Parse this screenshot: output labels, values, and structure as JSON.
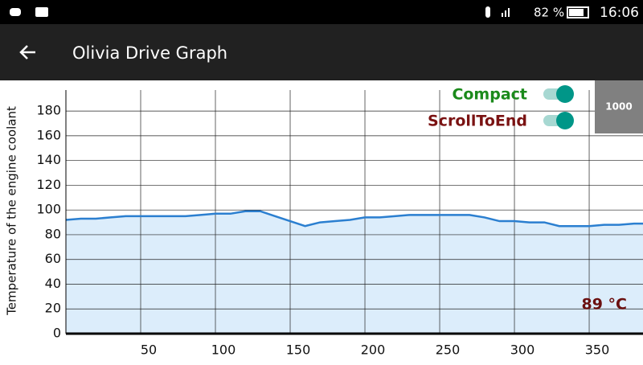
{
  "status_bar": {
    "battery": "82 %",
    "time": "16:06"
  },
  "app_bar": {
    "title": "Olivia Drive Graph"
  },
  "controls": {
    "toggles": [
      "Compact",
      "ScrollToEnd"
    ],
    "button": "1000"
  },
  "chart_data": {
    "type": "line",
    "y_label": "Temperature of the engine coolant",
    "annotation": "89 °C",
    "x": [
      0,
      10,
      20,
      30,
      40,
      50,
      60,
      70,
      80,
      90,
      100,
      110,
      120,
      130,
      140,
      150,
      160,
      170,
      180,
      190,
      200,
      210,
      220,
      230,
      240,
      250,
      260,
      270,
      280,
      290,
      300,
      310,
      320,
      330,
      340,
      350,
      360,
      370,
      380,
      386
    ],
    "values": [
      92,
      93,
      93,
      94,
      95,
      95,
      95,
      95,
      95,
      96,
      97,
      97,
      99,
      99,
      95,
      91,
      87,
      90,
      91,
      92,
      94,
      94,
      95,
      96,
      96,
      96,
      96,
      96,
      94,
      91,
      91,
      90,
      90,
      87,
      87,
      87,
      88,
      88,
      89,
      89
    ],
    "color": "#2b7fd0",
    "fill_color": "#dcedfb",
    "xlim": [
      0,
      386
    ],
    "ylim": [
      0,
      197
    ],
    "xticks": [
      50,
      100,
      150,
      200,
      250,
      300,
      350
    ],
    "yticks": [
      0,
      20,
      40,
      60,
      80,
      100,
      120,
      140,
      160,
      180
    ],
    "grid": true
  }
}
